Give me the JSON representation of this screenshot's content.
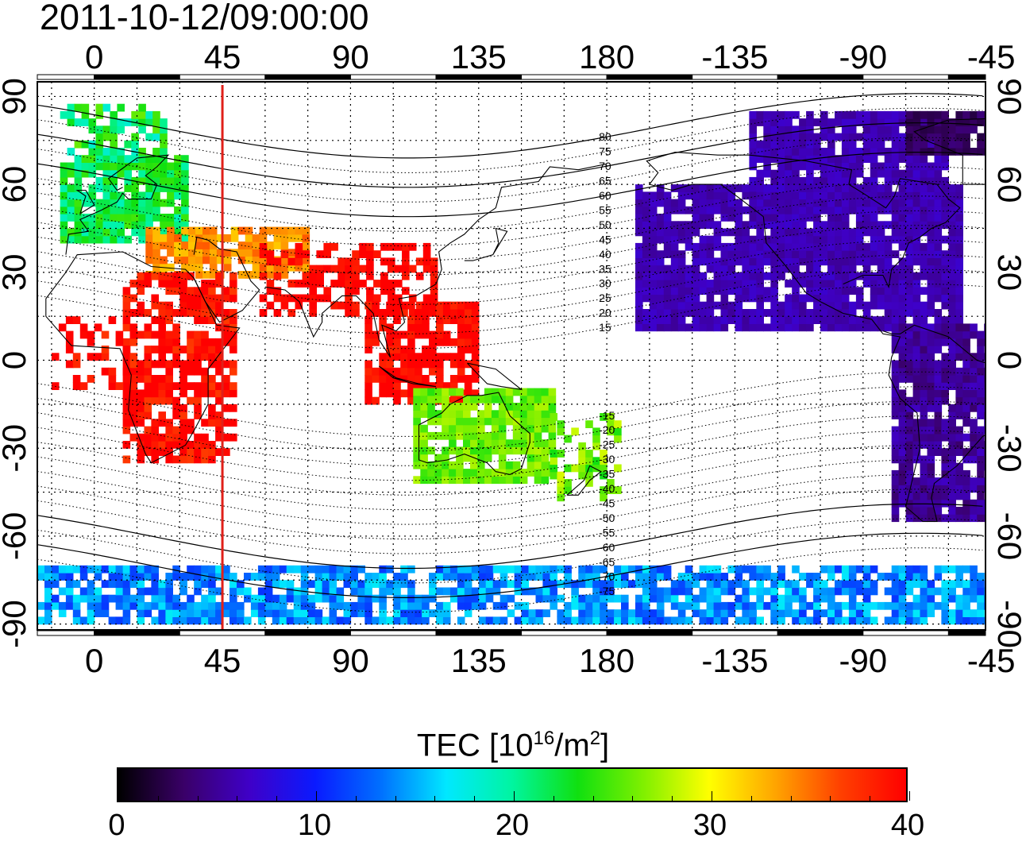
{
  "figure": {
    "timestamp": "2011-10-12/09:00:00",
    "marker_longitude": 45,
    "marker_color": "#e0201a"
  },
  "axes": {
    "top_lon_ticks": [
      "0",
      "45",
      "90",
      "135",
      "180",
      "-135",
      "-90",
      "-45"
    ],
    "bottom_lon_ticks": [
      "0",
      "45",
      "90",
      "135",
      "180",
      "-135",
      "-90",
      "-45"
    ],
    "left_lat_ticks": [
      "90",
      "60",
      "30",
      "0",
      "-30",
      "-60",
      "-90"
    ],
    "right_lat_ticks": [
      "90",
      "60",
      "30",
      "0",
      "-30",
      "-60",
      "-90"
    ],
    "lon_range": [
      -20,
      313
    ],
    "lat_range": [
      -92,
      95
    ],
    "grid": "dotted 15°"
  },
  "magnetic_latitude_labels": [
    "80",
    "75",
    "70",
    "65",
    "60",
    "55",
    "50",
    "45",
    "40",
    "35",
    "30",
    "25",
    "20",
    "15",
    "-15",
    "-20",
    "-25",
    "-30",
    "-35",
    "-40",
    "-45",
    "-50",
    "-55",
    "-60",
    "-65",
    "-70",
    "-75"
  ],
  "colorbar": {
    "title_main": "TEC  [10",
    "title_exp1": "16",
    "title_mid": "/m",
    "title_exp2": "2",
    "title_end": "]",
    "min": 0,
    "max": 40,
    "tick_labels": [
      "0",
      "10",
      "20",
      "30",
      "40"
    ],
    "colors": [
      "#000000",
      "#3a0068",
      "#3f00c8",
      "#0a1aff",
      "#0070ff",
      "#00e8ff",
      "#00f5a0",
      "#10e010",
      "#80f000",
      "#ffff00",
      "#ffa500",
      "#ff4000",
      "#ff0000"
    ]
  },
  "tec_regions": [
    {
      "name": "europe",
      "value": 22
    },
    {
      "name": "middle-east",
      "value": 34
    },
    {
      "name": "africa",
      "value": 40
    },
    {
      "name": "india-se-asia",
      "value": 40
    },
    {
      "name": "australia",
      "value": 26
    },
    {
      "name": "north-america",
      "value": 6
    },
    {
      "name": "south-america",
      "value": 5
    },
    {
      "name": "antarctica",
      "value": 14
    },
    {
      "name": "greenland",
      "value": 3
    }
  ]
}
